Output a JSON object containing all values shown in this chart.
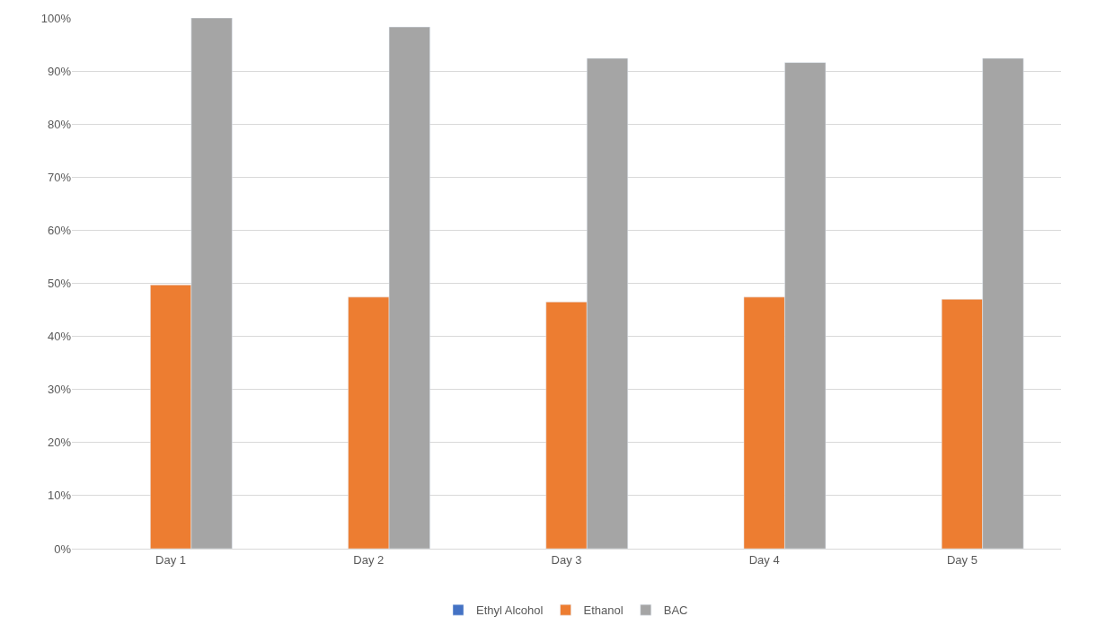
{
  "chart_data": {
    "type": "bar",
    "categories": [
      "Day 1",
      "Day 2",
      "Day 3",
      "Day 4",
      "Day 5"
    ],
    "series": [
      {
        "name": "Ethyl Alcohol",
        "color": "#4472c4",
        "values": [
          null,
          null,
          null,
          null,
          null
        ]
      },
      {
        "name": "Ethanol",
        "color": "#ed7d31",
        "values": [
          49.7,
          47.4,
          46.5,
          47.4,
          47.0
        ]
      },
      {
        "name": "BAC",
        "color": "#a5a5a5",
        "values": [
          100,
          98.3,
          92.4,
          91.6,
          92.4
        ]
      }
    ],
    "ylim": [
      0,
      100
    ],
    "yticks": [
      {
        "value": 0,
        "label": "0%"
      },
      {
        "value": 10,
        "label": "10%"
      },
      {
        "value": 20,
        "label": "20%"
      },
      {
        "value": 30,
        "label": "30%"
      },
      {
        "value": 40,
        "label": "40%"
      },
      {
        "value": 50,
        "label": "50%"
      },
      {
        "value": 60,
        "label": "60%"
      },
      {
        "value": 70,
        "label": "70%"
      },
      {
        "value": 80,
        "label": "80%"
      },
      {
        "value": 90,
        "label": "90%"
      },
      {
        "value": 100,
        "label": "100%"
      }
    ],
    "grid": "y",
    "legend": "bottom"
  }
}
